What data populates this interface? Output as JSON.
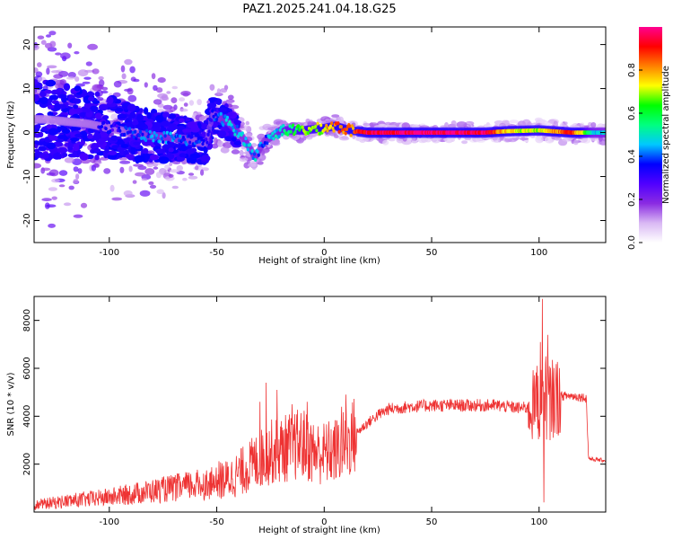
{
  "title": "PAZ1.2025.241.04.18.G25",
  "chart_data": [
    {
      "type": "heatmap",
      "name": "spectrogram",
      "xlabel": "Height of straight line (km)",
      "ylabel": "Frequency (Hz)",
      "xlim": [
        -135,
        131
      ],
      "ylim": [
        -25,
        24
      ],
      "x_ticks": [
        -100,
        -50,
        0,
        50,
        100
      ],
      "y_ticks": [
        -20,
        -10,
        0,
        10,
        20
      ],
      "colorbar": {
        "label": "Normalized spectral amplitude",
        "range": [
          0,
          1
        ],
        "ticks": [
          0.0,
          0.2,
          0.4,
          0.6,
          0.8
        ],
        "tick_labels": [
          "0.0",
          "0.2",
          "0.4",
          "0.6",
          "0.8"
        ],
        "colors": [
          "#ffffff",
          "#d9b8f4",
          "#8a2be2",
          "#5000ff",
          "#0000ff",
          "#00c8ff",
          "#00ff80",
          "#00ff00",
          "#ffff00",
          "#ff8000",
          "#ff0000",
          "#ff0090"
        ]
      },
      "ridge": [
        {
          "x": -130,
          "freq": 3,
          "amp": 0.28
        },
        {
          "x": -110,
          "freq": 2,
          "amp": 0.3
        },
        {
          "x": -95,
          "freq": 0.5,
          "amp": 0.32
        },
        {
          "x": -85,
          "freq": -0.5,
          "amp": 0.38
        },
        {
          "x": -75,
          "freq": -1,
          "amp": 0.42
        },
        {
          "x": -65,
          "freq": -1.5,
          "amp": 0.38
        },
        {
          "x": -55,
          "freq": -2.5,
          "amp": 0.33
        },
        {
          "x": -52,
          "freq": 4,
          "amp": 0.35
        },
        {
          "x": -45,
          "freq": 2.5,
          "amp": 0.45
        },
        {
          "x": -38,
          "freq": -1,
          "amp": 0.45
        },
        {
          "x": -32,
          "freq": -5.5,
          "amp": 0.45
        },
        {
          "x": -28,
          "freq": -2,
          "amp": 0.4
        },
        {
          "x": -20,
          "freq": 0.5,
          "amp": 0.5
        },
        {
          "x": -10,
          "freq": 0.5,
          "amp": 0.65
        },
        {
          "x": 0,
          "freq": 1,
          "amp": 0.72
        },
        {
          "x": 5,
          "freq": 1.5,
          "amp": 0.85
        },
        {
          "x": 12,
          "freq": 0.5,
          "amp": 0.8
        },
        {
          "x": 20,
          "freq": 0,
          "amp": 0.95
        },
        {
          "x": 40,
          "freq": 0,
          "amp": 0.98
        },
        {
          "x": 60,
          "freq": 0,
          "amp": 0.98
        },
        {
          "x": 75,
          "freq": 0,
          "amp": 0.95
        },
        {
          "x": 85,
          "freq": 0.3,
          "amp": 0.75
        },
        {
          "x": 100,
          "freq": 0.5,
          "amp": 0.7
        },
        {
          "x": 115,
          "freq": 0,
          "amp": 0.9
        },
        {
          "x": 125,
          "freq": 0,
          "amp": 0.5
        },
        {
          "x": 131,
          "freq": 0,
          "amp": 0.45
        }
      ]
    },
    {
      "type": "line",
      "name": "snr",
      "xlabel": "Height of straight line (km)",
      "ylabel": "SNR (10 * v/v)",
      "xlim": [
        -135,
        131
      ],
      "ylim": [
        0,
        9000
      ],
      "x_ticks": [
        -100,
        -50,
        0,
        50,
        100
      ],
      "y_ticks": [
        2000,
        4000,
        6000,
        8000
      ],
      "color": "#ee3333",
      "series": [
        {
          "name": "SNR",
          "x": [
            -135,
            -120,
            -100,
            -80,
            -60,
            -45,
            -40,
            -35,
            -30,
            -25,
            -20,
            -15,
            -10,
            -5,
            0,
            5,
            10,
            15,
            20,
            25,
            30,
            40,
            50,
            60,
            70,
            80,
            90,
            95,
            100,
            102,
            105,
            110,
            115,
            120,
            122,
            123,
            125,
            131
          ],
          "values": [
            200,
            400,
            600,
            900,
            1200,
            1350,
            1600,
            1900,
            2200,
            2500,
            2600,
            2750,
            2850,
            2500,
            2450,
            2550,
            2800,
            3300,
            3700,
            4050,
            4300,
            4400,
            4450,
            4450,
            4450,
            4450,
            4350,
            4350,
            4500,
            4550,
            4700,
            4850,
            4850,
            4800,
            4750,
            2250,
            2200,
            2150
          ],
          "spikes": [
            {
              "x": -30,
              "value": 4600
            },
            {
              "x": -27,
              "value": 5400
            },
            {
              "x": -22,
              "value": 5100
            },
            {
              "x": -15,
              "value": 4500
            },
            {
              "x": -8,
              "value": 4600
            },
            {
              "x": 8,
              "value": 4400
            },
            {
              "x": 10,
              "value": 4900
            },
            {
              "x": 97,
              "value": 5100
            },
            {
              "x": 99,
              "value": 6100
            },
            {
              "x": 100.5,
              "value": 7100
            },
            {
              "x": 101.5,
              "value": 8900
            },
            {
              "x": 102.2,
              "value": 400
            },
            {
              "x": 103,
              "value": 6500
            },
            {
              "x": 104,
              "value": 7400
            },
            {
              "x": 105,
              "value": 3000
            }
          ]
        }
      ]
    }
  ]
}
